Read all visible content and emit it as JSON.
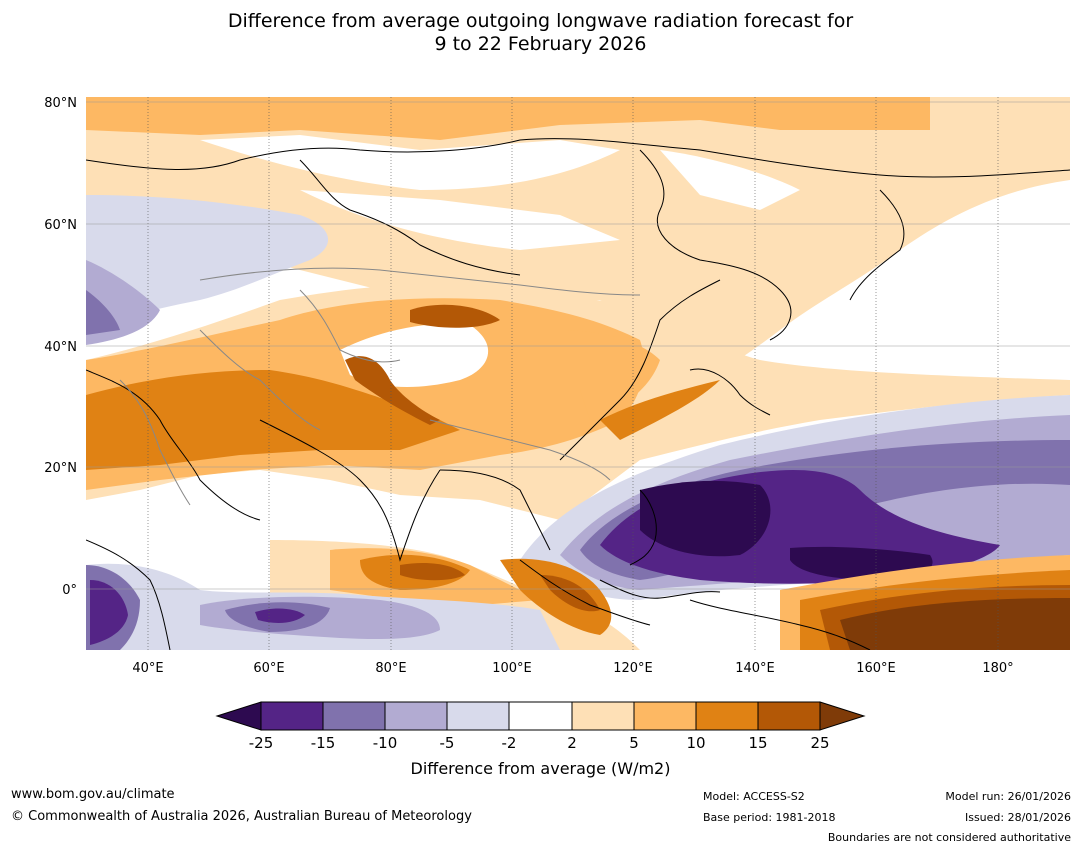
{
  "title": {
    "line1": "Difference from average outgoing longwave radiation forecast for",
    "line2": "9 to 22 February 2026"
  },
  "map": {
    "lat_labels": [
      "80°N",
      "60°N",
      "40°N",
      "20°N",
      "0°"
    ],
    "lon_labels": [
      "40°E",
      "60°E",
      "80°E",
      "100°E",
      "120°E",
      "140°E",
      "160°E",
      "180°"
    ],
    "lat_extent": [
      -10,
      80
    ],
    "lon_extent": [
      30,
      190
    ]
  },
  "colorbar": {
    "levels": [
      "-25",
      "-15",
      "-10",
      "-5",
      "-2",
      "2",
      "5",
      "10",
      "15",
      "25"
    ],
    "colors": {
      "under": "#2d0a50",
      "c1": "#542486",
      "c2": "#8072ad",
      "c3": "#b2abd2",
      "c4": "#d8daeb",
      "c5": "#ffffff",
      "c6": "#fee0b6",
      "c7": "#fdb863",
      "c8": "#e08214",
      "c9": "#b35806",
      "over": "#7f3b08"
    },
    "title": "Difference from average (W/m2)"
  },
  "footer": {
    "url": "www.bom.gov.au/climate",
    "copyright": "© Commonwealth of Australia 2026, Australian Bureau of Meteorology",
    "model": "Model: ACCESS-S2",
    "base_period": "Base period: 1981-2018",
    "model_run": "Model run: 26/01/2026",
    "issued": "Issued: 28/01/2026",
    "disclaimer": "Boundaries are not considered authoritative"
  }
}
